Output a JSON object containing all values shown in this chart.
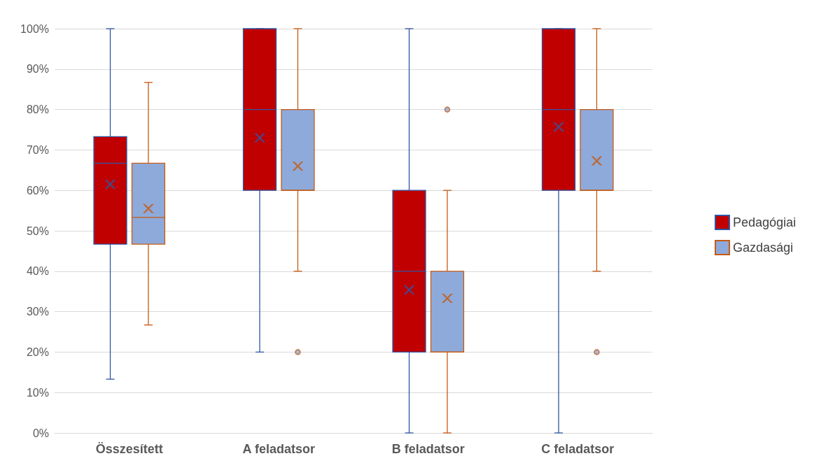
{
  "chart_data": {
    "type": "box",
    "categories": [
      "Összesített",
      "A feladatsor",
      "B feladatsor",
      "C feladatsor"
    ],
    "ylim": [
      0,
      100
    ],
    "yticks": [
      {
        "value": 0,
        "label": "0%"
      },
      {
        "value": 10,
        "label": "10%"
      },
      {
        "value": 20,
        "label": "20%"
      },
      {
        "value": 30,
        "label": "30%"
      },
      {
        "value": 40,
        "label": "40%"
      },
      {
        "value": 50,
        "label": "50%"
      },
      {
        "value": 60,
        "label": "60%"
      },
      {
        "value": 70,
        "label": "70%"
      },
      {
        "value": 80,
        "label": "80%"
      },
      {
        "value": 90,
        "label": "90%"
      },
      {
        "value": 100,
        "label": "100%"
      }
    ],
    "grid": "y",
    "legend": "right",
    "marker": "cross",
    "series": [
      {
        "name": "Pedagógiai",
        "color": "#c00000",
        "boxes": [
          {
            "low": 13.3,
            "q1": 46.7,
            "median": 66.7,
            "q3": 73.3,
            "high": 100,
            "mean": 61.5
          },
          {
            "low": 20,
            "q1": 60,
            "median": 80,
            "q3": 100,
            "high": 100,
            "mean": 73
          },
          {
            "low": 0,
            "q1": 20,
            "median": 40,
            "q3": 60,
            "high": 100,
            "mean": 35.4
          },
          {
            "low": 0,
            "q1": 60,
            "median": 80,
            "q3": 100,
            "high": 100,
            "mean": 75.7
          }
        ]
      },
      {
        "name": "Gazdasági",
        "color": "#8eaadb",
        "boxes": [
          {
            "low": 26.7,
            "q1": 46.7,
            "median": 53.3,
            "q3": 66.7,
            "high": 86.7,
            "mean": 55.5
          },
          {
            "low": 40,
            "q1": 60,
            "median": 60,
            "q3": 80,
            "high": 100,
            "mean": 66,
            "outliers": [
              20
            ]
          },
          {
            "low": 0,
            "q1": 20,
            "median": 20,
            "q3": 40,
            "high": 60,
            "mean": 33.3,
            "outliers": [
              80
            ]
          },
          {
            "low": 40,
            "q1": 60,
            "median": 60,
            "q3": 80,
            "high": 100,
            "mean": 67.3,
            "outliers": [
              20
            ]
          }
        ]
      }
    ]
  }
}
